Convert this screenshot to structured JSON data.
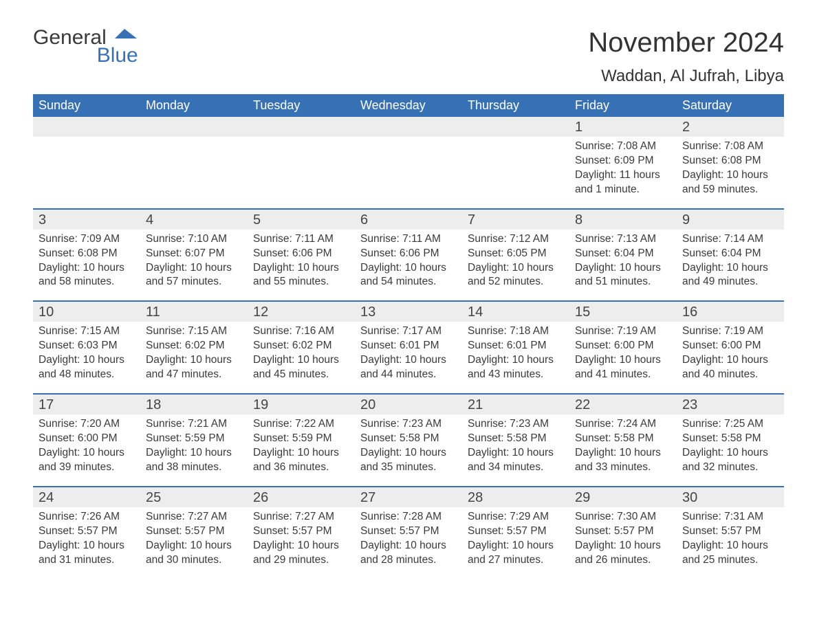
{
  "logo": {
    "part1": "General",
    "part2": "Blue"
  },
  "title": "November 2024",
  "location": "Waddan, Al Jufrah, Libya",
  "colors": {
    "brand_blue": "#3671b6",
    "band_gray": "#ededed",
    "text": "#3a3a3a",
    "bg": "#ffffff"
  },
  "day_names": [
    "Sunday",
    "Monday",
    "Tuesday",
    "Wednesday",
    "Thursday",
    "Friday",
    "Saturday"
  ],
  "labels": {
    "sunrise": "Sunrise: ",
    "sunset": "Sunset: ",
    "daylight": "Daylight: "
  },
  "weeks": [
    [
      null,
      null,
      null,
      null,
      null,
      {
        "n": "1",
        "sunrise": "7:08 AM",
        "sunset": "6:09 PM",
        "daylight": "11 hours and 1 minute."
      },
      {
        "n": "2",
        "sunrise": "7:08 AM",
        "sunset": "6:08 PM",
        "daylight": "10 hours and 59 minutes."
      }
    ],
    [
      {
        "n": "3",
        "sunrise": "7:09 AM",
        "sunset": "6:08 PM",
        "daylight": "10 hours and 58 minutes."
      },
      {
        "n": "4",
        "sunrise": "7:10 AM",
        "sunset": "6:07 PM",
        "daylight": "10 hours and 57 minutes."
      },
      {
        "n": "5",
        "sunrise": "7:11 AM",
        "sunset": "6:06 PM",
        "daylight": "10 hours and 55 minutes."
      },
      {
        "n": "6",
        "sunrise": "7:11 AM",
        "sunset": "6:06 PM",
        "daylight": "10 hours and 54 minutes."
      },
      {
        "n": "7",
        "sunrise": "7:12 AM",
        "sunset": "6:05 PM",
        "daylight": "10 hours and 52 minutes."
      },
      {
        "n": "8",
        "sunrise": "7:13 AM",
        "sunset": "6:04 PM",
        "daylight": "10 hours and 51 minutes."
      },
      {
        "n": "9",
        "sunrise": "7:14 AM",
        "sunset": "6:04 PM",
        "daylight": "10 hours and 49 minutes."
      }
    ],
    [
      {
        "n": "10",
        "sunrise": "7:15 AM",
        "sunset": "6:03 PM",
        "daylight": "10 hours and 48 minutes."
      },
      {
        "n": "11",
        "sunrise": "7:15 AM",
        "sunset": "6:02 PM",
        "daylight": "10 hours and 47 minutes."
      },
      {
        "n": "12",
        "sunrise": "7:16 AM",
        "sunset": "6:02 PM",
        "daylight": "10 hours and 45 minutes."
      },
      {
        "n": "13",
        "sunrise": "7:17 AM",
        "sunset": "6:01 PM",
        "daylight": "10 hours and 44 minutes."
      },
      {
        "n": "14",
        "sunrise": "7:18 AM",
        "sunset": "6:01 PM",
        "daylight": "10 hours and 43 minutes."
      },
      {
        "n": "15",
        "sunrise": "7:19 AM",
        "sunset": "6:00 PM",
        "daylight": "10 hours and 41 minutes."
      },
      {
        "n": "16",
        "sunrise": "7:19 AM",
        "sunset": "6:00 PM",
        "daylight": "10 hours and 40 minutes."
      }
    ],
    [
      {
        "n": "17",
        "sunrise": "7:20 AM",
        "sunset": "6:00 PM",
        "daylight": "10 hours and 39 minutes."
      },
      {
        "n": "18",
        "sunrise": "7:21 AM",
        "sunset": "5:59 PM",
        "daylight": "10 hours and 38 minutes."
      },
      {
        "n": "19",
        "sunrise": "7:22 AM",
        "sunset": "5:59 PM",
        "daylight": "10 hours and 36 minutes."
      },
      {
        "n": "20",
        "sunrise": "7:23 AM",
        "sunset": "5:58 PM",
        "daylight": "10 hours and 35 minutes."
      },
      {
        "n": "21",
        "sunrise": "7:23 AM",
        "sunset": "5:58 PM",
        "daylight": "10 hours and 34 minutes."
      },
      {
        "n": "22",
        "sunrise": "7:24 AM",
        "sunset": "5:58 PM",
        "daylight": "10 hours and 33 minutes."
      },
      {
        "n": "23",
        "sunrise": "7:25 AM",
        "sunset": "5:58 PM",
        "daylight": "10 hours and 32 minutes."
      }
    ],
    [
      {
        "n": "24",
        "sunrise": "7:26 AM",
        "sunset": "5:57 PM",
        "daylight": "10 hours and 31 minutes."
      },
      {
        "n": "25",
        "sunrise": "7:27 AM",
        "sunset": "5:57 PM",
        "daylight": "10 hours and 30 minutes."
      },
      {
        "n": "26",
        "sunrise": "7:27 AM",
        "sunset": "5:57 PM",
        "daylight": "10 hours and 29 minutes."
      },
      {
        "n": "27",
        "sunrise": "7:28 AM",
        "sunset": "5:57 PM",
        "daylight": "10 hours and 28 minutes."
      },
      {
        "n": "28",
        "sunrise": "7:29 AM",
        "sunset": "5:57 PM",
        "daylight": "10 hours and 27 minutes."
      },
      {
        "n": "29",
        "sunrise": "7:30 AM",
        "sunset": "5:57 PM",
        "daylight": "10 hours and 26 minutes."
      },
      {
        "n": "30",
        "sunrise": "7:31 AM",
        "sunset": "5:57 PM",
        "daylight": "10 hours and 25 minutes."
      }
    ]
  ]
}
